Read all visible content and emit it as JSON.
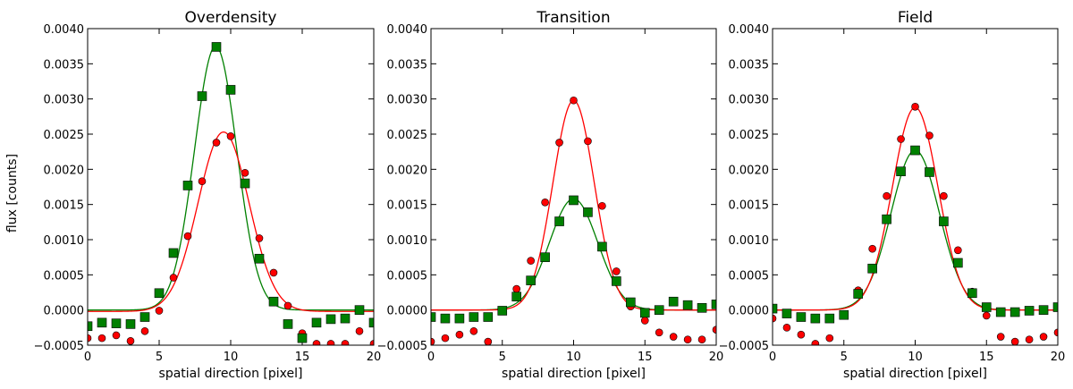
{
  "figure": {
    "ylabel": "flux [counts]",
    "xlabel": "spatial direction [pixel]"
  },
  "chart_data": [
    {
      "type": "scatter",
      "title": "Overdensity",
      "xlabel": "spatial direction [pixel]",
      "ylabel": "flux [counts]",
      "xlim": [
        0,
        20
      ],
      "ylim": [
        -0.0005,
        0.004
      ],
      "xticks": [
        "0",
        "5",
        "10",
        "15",
        "20"
      ],
      "yticks": [
        "−0.0005",
        "0.0000",
        "0.0005",
        "0.0010",
        "0.0015",
        "0.0020",
        "0.0025",
        "0.0030",
        "0.0035",
        "0.0040"
      ],
      "grid": false,
      "series": [
        {
          "color": "#ff0000",
          "marker": "circle",
          "x": [
            0,
            1,
            2,
            3,
            4,
            5,
            6,
            7,
            8,
            9,
            10,
            11,
            12,
            13,
            14,
            15,
            16,
            17,
            18,
            19,
            20
          ],
          "y": [
            -0.0004,
            -0.0004,
            -0.00036,
            -0.00044,
            -0.0003,
            -1e-05,
            0.00046,
            0.00105,
            0.00183,
            0.00238,
            0.00247,
            0.00195,
            0.00102,
            0.00053,
            6e-05,
            -0.00033,
            -0.00048,
            -0.00048,
            -0.00048,
            -0.0003,
            -0.00048
          ],
          "fit": {
            "amp": 0.00255,
            "mu": 9.5,
            "sigma": 1.78,
            "offset": -2e-05
          }
        },
        {
          "color": "#008000",
          "marker": "square",
          "x": [
            0,
            1,
            2,
            3,
            4,
            5,
            6,
            7,
            8,
            9,
            10,
            11,
            12,
            13,
            14,
            15,
            16,
            17,
            18,
            19,
            20
          ],
          "y": [
            -0.00023,
            -0.00018,
            -0.00019,
            -0.0002,
            -0.0001,
            0.00024,
            0.00081,
            0.00177,
            0.00304,
            0.00374,
            0.00313,
            0.0018,
            0.00073,
            0.00012,
            -0.0002,
            -0.0004,
            -0.00018,
            -0.00013,
            -0.00012,
            0.0,
            -0.00018
          ],
          "fit": {
            "amp": 0.00375,
            "mu": 8.95,
            "sigma": 1.48,
            "offset": 0.0
          }
        }
      ]
    },
    {
      "type": "scatter",
      "title": "Transition",
      "xlabel": "spatial direction [pixel]",
      "xlim": [
        0,
        20
      ],
      "ylim": [
        -0.0005,
        0.004
      ],
      "xticks": [
        "0",
        "5",
        "10",
        "15",
        "20"
      ],
      "yticks": [
        "−0.0005",
        "0.0000",
        "0.0005",
        "0.0010",
        "0.0015",
        "0.0020",
        "0.0025",
        "0.0030",
        "0.0035",
        "0.0040"
      ],
      "grid": false,
      "series": [
        {
          "color": "#ff0000",
          "marker": "circle",
          "x": [
            0,
            1,
            2,
            3,
            4,
            5,
            6,
            7,
            8,
            9,
            10,
            11,
            12,
            13,
            14,
            15,
            16,
            17,
            18,
            19,
            20
          ],
          "y": [
            -0.00045,
            -0.0004,
            -0.00035,
            -0.0003,
            -0.00045,
            0.0,
            0.0003,
            0.0007,
            0.00153,
            0.00238,
            0.00298,
            0.0024,
            0.00148,
            0.00055,
            5e-05,
            -0.00015,
            -0.00032,
            -0.00038,
            -0.00042,
            -0.00042,
            -0.00028
          ],
          "fit": {
            "amp": 0.00298,
            "mu": 10.0,
            "sigma": 1.45,
            "offset": 0.0
          }
        },
        {
          "color": "#008000",
          "marker": "square",
          "x": [
            0,
            1,
            2,
            3,
            4,
            5,
            6,
            7,
            8,
            9,
            10,
            11,
            12,
            13,
            14,
            15,
            16,
            17,
            18,
            19,
            20
          ],
          "y": [
            -0.0001,
            -0.00012,
            -0.00012,
            -0.0001,
            -0.0001,
            -1e-05,
            0.00019,
            0.00042,
            0.00075,
            0.00126,
            0.00156,
            0.00139,
            0.0009,
            0.00041,
            0.00011,
            -4e-05,
            0.0,
            0.00012,
            7e-05,
            3e-05,
            8e-05
          ],
          "fit": {
            "amp": 0.00158,
            "mu": 10.0,
            "sigma": 1.7,
            "offset": 0.0
          }
        }
      ]
    },
    {
      "type": "scatter",
      "title": "Field",
      "xlabel": "spatial direction [pixel]",
      "xlim": [
        0,
        20
      ],
      "ylim": [
        -0.0005,
        0.004
      ],
      "xticks": [
        "0",
        "5",
        "10",
        "15",
        "20"
      ],
      "yticks": [
        "−0.0005",
        "0.0000",
        "0.0005",
        "0.0010",
        "0.0015",
        "0.0020",
        "0.0025",
        "0.0030",
        "0.0035",
        "0.0040"
      ],
      "grid": false,
      "series": [
        {
          "color": "#ff0000",
          "marker": "circle",
          "x": [
            0,
            1,
            2,
            3,
            4,
            5,
            6,
            7,
            8,
            9,
            10,
            11,
            12,
            13,
            14,
            15,
            16,
            17,
            18,
            19,
            20
          ],
          "y": [
            -0.00012,
            -0.00025,
            -0.00035,
            -0.00048,
            -0.0004,
            -8e-05,
            0.00028,
            0.00087,
            0.00162,
            0.00243,
            0.00289,
            0.00248,
            0.00162,
            0.00085,
            0.00026,
            -8e-05,
            -0.00038,
            -0.00045,
            -0.00042,
            -0.00038,
            -0.00032
          ],
          "fit": {
            "amp": 0.00288,
            "mu": 10.0,
            "sigma": 1.6,
            "offset": 0.0
          }
        },
        {
          "color": "#008000",
          "marker": "square",
          "x": [
            0,
            1,
            2,
            3,
            4,
            5,
            6,
            7,
            8,
            9,
            10,
            11,
            12,
            13,
            14,
            15,
            16,
            17,
            18,
            19,
            20
          ],
          "y": [
            2e-05,
            -5e-05,
            -0.0001,
            -0.00012,
            -0.00012,
            -7e-05,
            0.00023,
            0.00059,
            0.00129,
            0.00197,
            0.00227,
            0.00196,
            0.00126,
            0.00067,
            0.00024,
            4e-05,
            -3e-05,
            -3e-05,
            -1e-05,
            0.0,
            4e-05
          ],
          "fit": {
            "amp": 0.00227,
            "mu": 10.0,
            "sigma": 1.7,
            "offset": 0.0
          }
        }
      ]
    }
  ]
}
